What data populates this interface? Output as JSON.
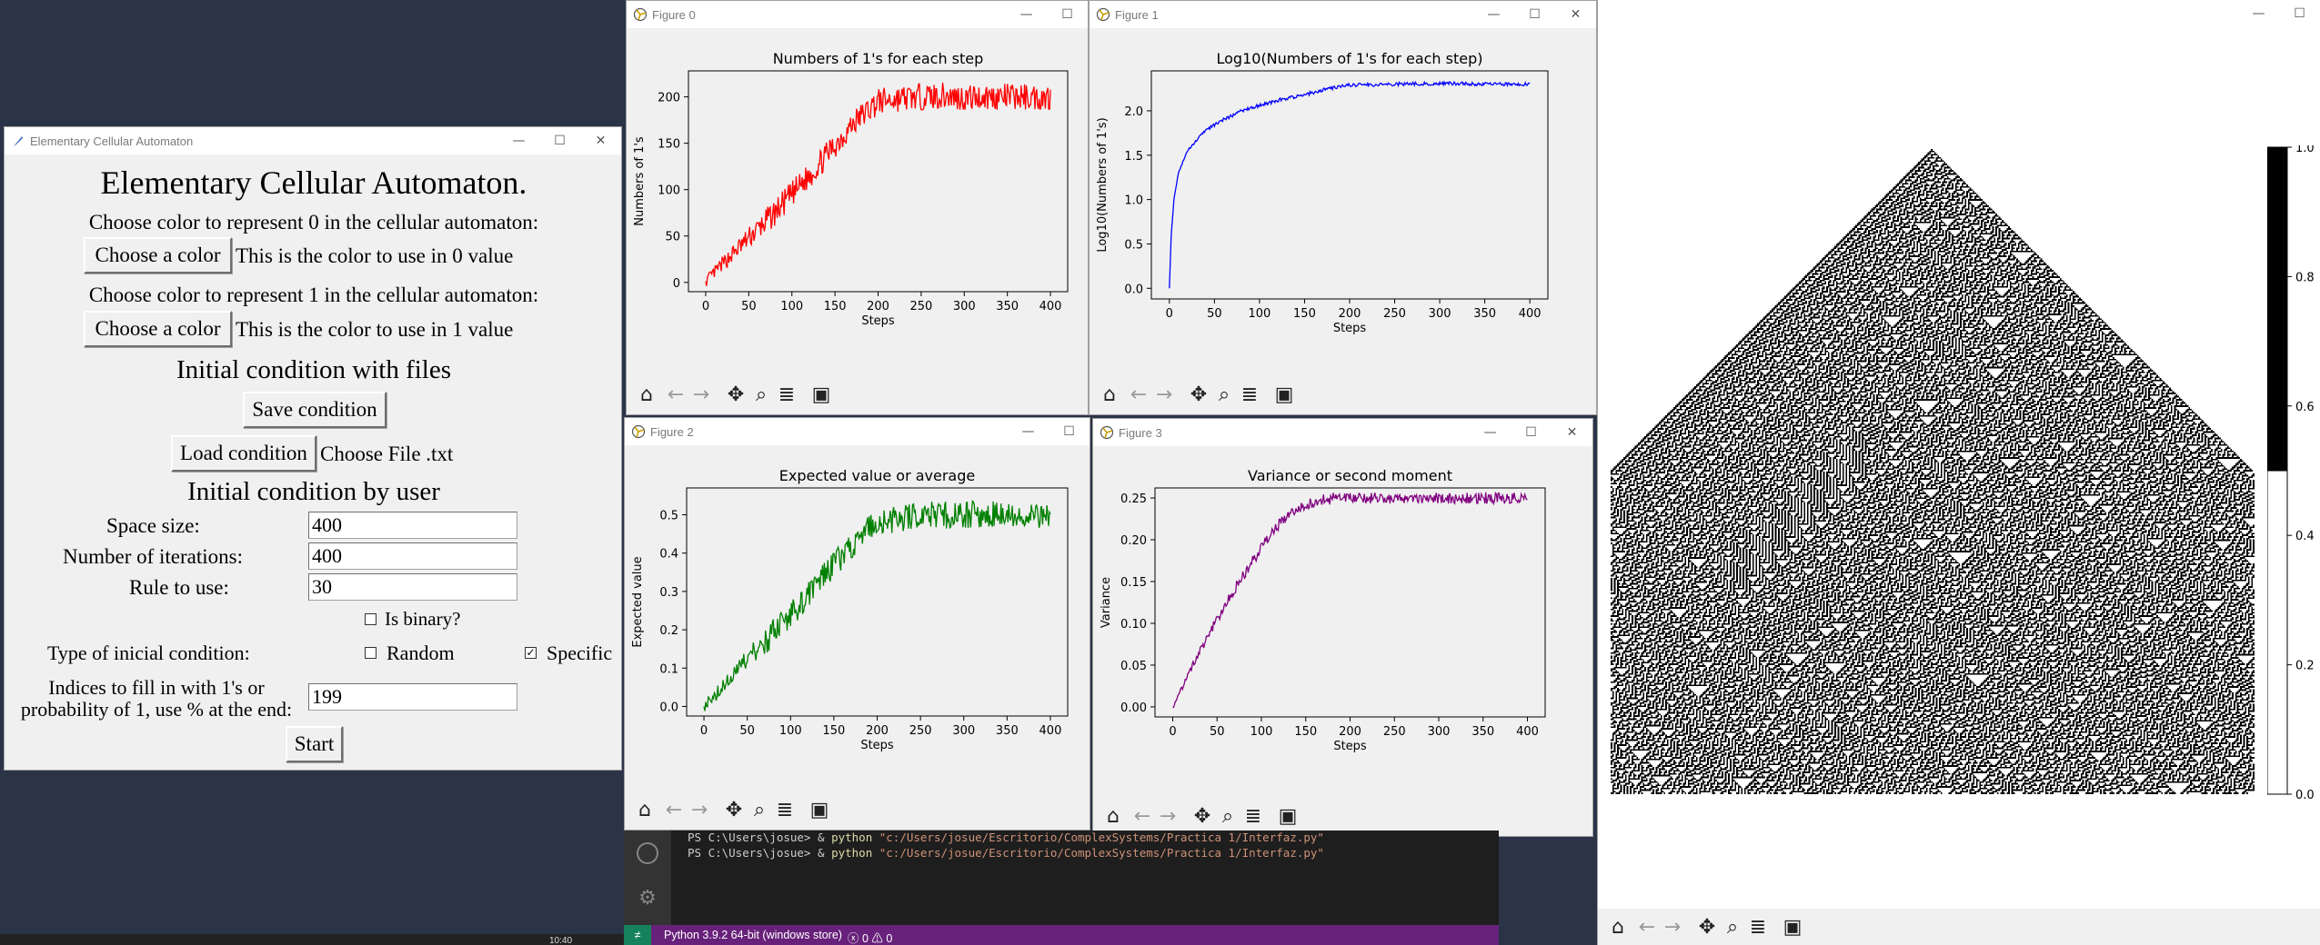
{
  "desktop": {
    "taskbar_time_partial": "10:40"
  },
  "tk_window": {
    "title": "Elementary Cellular Automaton",
    "heading": "Elementary Cellular Automaton.",
    "choose_color_0_label": "Choose color to represent 0 in the cellular automaton:",
    "choose_color_button": "Choose a color",
    "color_0_desc": "This is the color to use in 0 value",
    "choose_color_1_label": "Choose color to represent 1 in the cellular automaton:",
    "color_1_desc": "This is the color to use in 1 value",
    "files_heading": "Initial condition with files",
    "save_button": "Save condition",
    "load_button": "Load condition",
    "choose_file_label": "Choose File .txt",
    "user_heading": "Initial condition by user",
    "space_size_label": "Space size:",
    "space_size_value": "400",
    "iterations_label": "Number of iterations:",
    "iterations_value": "400",
    "rule_label": "Rule to use:",
    "rule_value": "30",
    "is_binary_label": "Is binary?",
    "is_binary_checked": false,
    "type_label": "Type of inicial condition:",
    "random_label": "Random",
    "random_checked": false,
    "specific_label": "Specific",
    "specific_checked": true,
    "indices_label_line1": "Indices to fill in with 1's or",
    "indices_label_line2": "probability of 1, use % at the end:",
    "indices_value": "199",
    "start_button": "Start"
  },
  "figures": [
    {
      "title": "Figure 0"
    },
    {
      "title": "Figure 1"
    },
    {
      "title": "Figure 2"
    },
    {
      "title": "Figure 3"
    }
  ],
  "chart_data": [
    {
      "type": "line",
      "title": "Numbers of 1's for each step",
      "xlabel": "Steps",
      "ylabel": "Numbers of 1's",
      "color": "#ff0000",
      "xlim": [
        -20,
        420
      ],
      "ylim": [
        -10,
        228
      ],
      "xticks": [
        0,
        50,
        100,
        150,
        200,
        250,
        300,
        350,
        400
      ],
      "yticks": [
        0,
        50,
        100,
        150,
        200
      ],
      "x": [
        0,
        25,
        50,
        75,
        100,
        125,
        150,
        175,
        200,
        225,
        250,
        275,
        300,
        325,
        350,
        375,
        400
      ],
      "values": [
        1,
        25,
        48,
        70,
        95,
        120,
        148,
        175,
        195,
        198,
        200,
        201,
        199,
        200,
        200,
        200,
        199
      ],
      "noise_pct": 0.06,
      "points": 400
    },
    {
      "type": "line",
      "title": "Log10(Numbers of 1's for each step)",
      "xlabel": "Steps",
      "ylabel": "Log10(Numbers of 1's)",
      "color": "#0000ff",
      "xlim": [
        -20,
        420
      ],
      "ylim": [
        -0.12,
        2.45
      ],
      "xticks": [
        0,
        50,
        100,
        150,
        200,
        250,
        300,
        350,
        400
      ],
      "yticks": [
        0.0,
        0.5,
        1.0,
        1.5,
        2.0
      ],
      "x": [
        0,
        2,
        5,
        10,
        20,
        40,
        60,
        80,
        100,
        125,
        150,
        175,
        200,
        250,
        300,
        350,
        400
      ],
      "values": [
        0.0,
        0.6,
        1.0,
        1.3,
        1.55,
        1.78,
        1.9,
        2.0,
        2.06,
        2.13,
        2.18,
        2.25,
        2.29,
        2.3,
        2.31,
        2.3,
        2.3
      ],
      "noise_pct": 0.008,
      "points": 400
    },
    {
      "type": "line",
      "title": "Expected value or average",
      "xlabel": "Steps",
      "ylabel": "Expected value",
      "color": "#008000",
      "xlim": [
        -20,
        420
      ],
      "ylim": [
        -0.025,
        0.57
      ],
      "xticks": [
        0,
        50,
        100,
        150,
        200,
        250,
        300,
        350,
        400
      ],
      "yticks": [
        0.0,
        0.1,
        0.2,
        0.3,
        0.4,
        0.5
      ],
      "x": [
        0,
        25,
        50,
        75,
        100,
        125,
        150,
        175,
        200,
        225,
        250,
        275,
        300,
        325,
        350,
        375,
        400
      ],
      "values": [
        0.0,
        0.06,
        0.12,
        0.18,
        0.24,
        0.3,
        0.37,
        0.43,
        0.48,
        0.49,
        0.5,
        0.5,
        0.5,
        0.5,
        0.5,
        0.5,
        0.5
      ],
      "noise_pct": 0.06,
      "points": 400
    },
    {
      "type": "line",
      "title": "Variance or second moment",
      "xlabel": "Steps",
      "ylabel": "Variance",
      "color": "#800080",
      "xlim": [
        -20,
        420
      ],
      "ylim": [
        -0.012,
        0.262
      ],
      "xticks": [
        0,
        50,
        100,
        150,
        200,
        250,
        300,
        350,
        400
      ],
      "yticks": [
        0.0,
        0.05,
        0.1,
        0.15,
        0.2,
        0.25
      ],
      "x": [
        0,
        25,
        50,
        75,
        100,
        125,
        150,
        175,
        200,
        250,
        300,
        350,
        400
      ],
      "values": [
        0.0,
        0.055,
        0.105,
        0.15,
        0.19,
        0.225,
        0.243,
        0.249,
        0.25,
        0.25,
        0.25,
        0.25,
        0.25
      ],
      "noise_pct": 0.025,
      "points": 400
    },
    {
      "type": "heatmap",
      "title": "",
      "rule": 30,
      "colorbar_ticks": [
        "1.0",
        "0.8",
        "0.6",
        "0.4",
        "0.2",
        "0.0"
      ]
    }
  ],
  "vscode": {
    "terminal_line1_prompt": "PS C:\\Users\\josue> ",
    "terminal_line1_amp": "& ",
    "terminal_line1_cmd": "python ",
    "terminal_line1_arg": "\"c:/Users/josue/Escritorio/ComplexSystems/Practica 1/Interfaz.py\"",
    "terminal_line2_prompt": "PS C:\\Users\\josue> ",
    "terminal_line2_amp": "& ",
    "terminal_line2_cmd": "python ",
    "terminal_line2_arg": "\"c:/Users/josue/Escritorio/ComplexSystems/Practica 1/Interfaz.py\"",
    "status_python": "Python 3.9.2 64-bit (windows store)",
    "status_problems": "ⓧ 0 ⚠ 0"
  }
}
